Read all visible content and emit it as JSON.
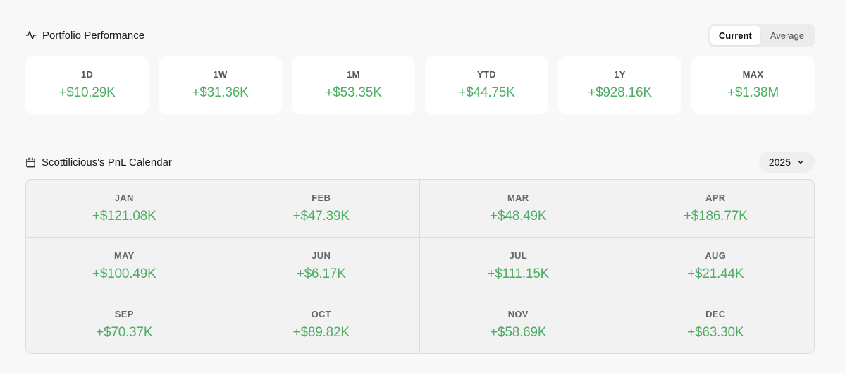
{
  "performance": {
    "title": "Portfolio Performance",
    "icon": "activity-icon",
    "toggle": {
      "options": [
        "Current",
        "Average"
      ],
      "selected": "Current"
    },
    "periods": [
      {
        "label": "1D",
        "value": "+$10.29K"
      },
      {
        "label": "1W",
        "value": "+$31.36K"
      },
      {
        "label": "1M",
        "value": "+$53.35K"
      },
      {
        "label": "YTD",
        "value": "+$44.75K"
      },
      {
        "label": "1Y",
        "value": "+$928.16K"
      },
      {
        "label": "MAX",
        "value": "+$1.38M"
      }
    ]
  },
  "calendar": {
    "title": "Scottilicious's PnL Calendar",
    "icon": "calendar-icon",
    "year": "2025",
    "months": [
      {
        "label": "JAN",
        "value": "+$121.08K"
      },
      {
        "label": "FEB",
        "value": "+$47.39K"
      },
      {
        "label": "MAR",
        "value": "+$48.49K"
      },
      {
        "label": "APR",
        "value": "+$186.77K"
      },
      {
        "label": "MAY",
        "value": "+$100.49K"
      },
      {
        "label": "JUN",
        "value": "+$6.17K"
      },
      {
        "label": "JUL",
        "value": "+$111.15K"
      },
      {
        "label": "AUG",
        "value": "+$21.44K"
      },
      {
        "label": "SEP",
        "value": "+$70.37K"
      },
      {
        "label": "OCT",
        "value": "+$89.82K"
      },
      {
        "label": "NOV",
        "value": "+$58.69K"
      },
      {
        "label": "DEC",
        "value": "+$63.30K"
      }
    ]
  },
  "colors": {
    "gain": "#4cad63",
    "background": "#f8f8f8",
    "card": "#ffffff",
    "calendar_cell": "#f2f2f3"
  }
}
